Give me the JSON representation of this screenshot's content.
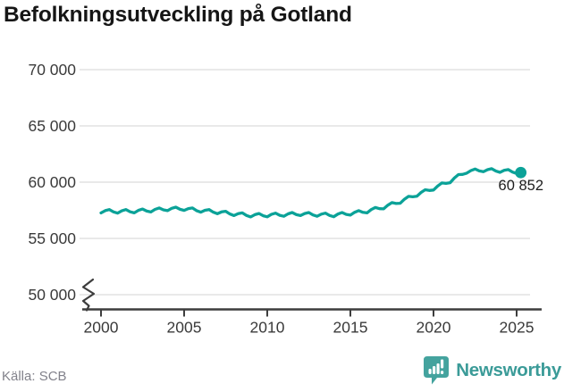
{
  "title": "Befolkningsutveckling på Gotland",
  "source": "Källa: SCB",
  "branding": {
    "name": "Newsworthy",
    "icon": "bar-chart-speech-bubble-icon",
    "text_color": "#3b9b98",
    "icon_color": "#44a39e"
  },
  "colors": {
    "line": "#0ba298",
    "grid": "#e2e2e2",
    "axis": "#3d3d3d",
    "tick_text": "#3a3a3a",
    "title_text": "#161616",
    "source_text": "#82828b",
    "end_label_text": "#1d1d1d",
    "background": "#ffffff"
  },
  "chart_data": {
    "type": "line",
    "title": "Befolkningsutveckling på Gotland",
    "xlabel": "",
    "ylabel": "",
    "x_tick_years": [
      2000,
      2005,
      2010,
      2015,
      2020,
      2025
    ],
    "x_tick_labels": [
      "2000",
      "2005",
      "2010",
      "2015",
      "2020",
      "2025"
    ],
    "y_ticks": [
      50000,
      55000,
      60000,
      65000,
      70000
    ],
    "y_tick_labels": [
      "50 000",
      "55 000",
      "60 000",
      "65 000",
      "70 000"
    ],
    "ylim_visible": [
      50000,
      70000
    ],
    "axis_break": true,
    "grid": "horizontal-only",
    "legend": "none",
    "series": [
      {
        "name": "Befolkning",
        "x_start": 2000.0,
        "x_step": 0.25,
        "values": [
          57270,
          57465,
          57560,
          57355,
          57250,
          57455,
          57560,
          57365,
          57270,
          57490,
          57610,
          57430,
          57350,
          57580,
          57710,
          57540,
          57470,
          57675,
          57780,
          57585,
          57490,
          57650,
          57710,
          57470,
          57330,
          57497,
          57565,
          57332,
          57200,
          57357,
          57415,
          57172,
          57030,
          57200,
          57270,
          57040,
          56910,
          57112,
          57215,
          57018,
          56920,
          57132,
          57245,
          57058,
          56970,
          57185,
          57300,
          57115,
          57030,
          57215,
          57300,
          57085,
          56970,
          57160,
          57250,
          57040,
          56930,
          57165,
          57300,
          57135,
          57070,
          57320,
          57470,
          57320,
          57270,
          57560,
          57750,
          57640,
          57630,
          57955,
          58180,
          58105,
          58130,
          58485,
          58740,
          58695,
          58750,
          59087,
          59325,
          59262,
          59300,
          59662,
          59925,
          59887,
          59950,
          60362,
          60675,
          60687,
          60800,
          61032,
          61165,
          60997,
          60930,
          61115,
          61200,
          60985,
          60870,
          61045,
          61120,
          60895,
          60770,
          60852
        ]
      }
    ],
    "end_point": {
      "x": 2025.25,
      "value": 60852,
      "label": "60 852"
    }
  }
}
